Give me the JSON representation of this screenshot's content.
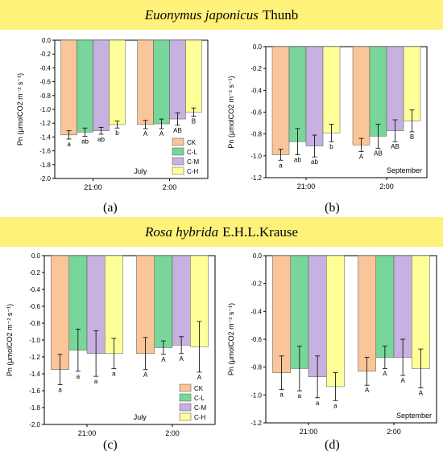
{
  "banners": [
    {
      "italic": "Euonymus japonicus",
      "plain": "Thunb"
    },
    {
      "italic": "Rosa hybrida",
      "plain": "E.H.L.Krause"
    }
  ],
  "colors": {
    "CK": "#f9c599",
    "C-L": "#78d69a",
    "C-M": "#c7b1e0",
    "C-H": "#ffff99",
    "banner": "#fff27a"
  },
  "chart_data": [
    {
      "id": "a",
      "type": "bar",
      "panel_label": "(a)",
      "month": "July",
      "ylabel": "Pn (μmolCO2 m⁻² s⁻¹)",
      "ylim": [
        -2.0,
        0.0
      ],
      "yticks": [
        0.0,
        -0.2,
        -0.4,
        -0.6,
        -0.8,
        -1.0,
        -1.2,
        -1.4,
        -1.6,
        -1.8,
        -2.0
      ],
      "categories": [
        "21:00",
        "2:00"
      ],
      "legend": {
        "show": true,
        "position": "lower-right"
      },
      "series": [
        {
          "name": "CK",
          "values": [
            -1.37,
            -1.22
          ],
          "errors": [
            0.06,
            0.06
          ],
          "letters": [
            "a",
            "A"
          ]
        },
        {
          "name": "C-L",
          "values": [
            -1.33,
            -1.21
          ],
          "errors": [
            0.06,
            0.07
          ],
          "letters": [
            "ab",
            "A"
          ]
        },
        {
          "name": "C-M",
          "values": [
            -1.31,
            -1.14
          ],
          "errors": [
            0.05,
            0.09
          ],
          "letters": [
            "ab",
            "AB"
          ]
        },
        {
          "name": "C-H",
          "values": [
            -1.22,
            -1.04
          ],
          "errors": [
            0.05,
            0.06
          ],
          "letters": [
            "b",
            "B"
          ]
        }
      ]
    },
    {
      "id": "b",
      "type": "bar",
      "panel_label": "(b)",
      "month": "September",
      "ylabel": "Pn (μmolCO2 m⁻² s⁻¹)",
      "ylim": [
        -1.2,
        0.0
      ],
      "yticks": [
        0.0,
        -0.2,
        -0.4,
        -0.6,
        -0.8,
        -1.0,
        -1.2
      ],
      "categories": [
        "21:00",
        "2:00"
      ],
      "legend": {
        "show": false
      },
      "series": [
        {
          "name": "CK",
          "values": [
            -0.99,
            -0.9
          ],
          "errors": [
            0.05,
            0.06
          ],
          "letters": [
            "a",
            "A"
          ]
        },
        {
          "name": "C-L",
          "values": [
            -0.87,
            -0.82
          ],
          "errors": [
            0.12,
            0.11
          ],
          "letters": [
            "ab",
            "AB"
          ]
        },
        {
          "name": "C-M",
          "values": [
            -0.91,
            -0.77
          ],
          "errors": [
            0.1,
            0.1
          ],
          "letters": [
            "ab",
            "AB"
          ]
        },
        {
          "name": "C-H",
          "values": [
            -0.79,
            -0.68
          ],
          "errors": [
            0.08,
            0.1
          ],
          "letters": [
            "b",
            "B"
          ]
        }
      ]
    },
    {
      "id": "c",
      "type": "bar",
      "panel_label": "(c)",
      "month": "July",
      "ylabel": "Pn (μmolCO2 m⁻² s⁻¹)",
      "ylim": [
        -2.0,
        0.0
      ],
      "yticks": [
        0.0,
        -0.2,
        -0.4,
        -0.6,
        -0.8,
        -1.0,
        -1.2,
        -1.4,
        -1.6,
        -1.8,
        -2.0
      ],
      "categories": [
        "21:00",
        "2:00"
      ],
      "legend": {
        "show": true,
        "position": "lower-right"
      },
      "series": [
        {
          "name": "CK",
          "values": [
            -1.35,
            -1.16
          ],
          "errors": [
            0.18,
            0.19
          ],
          "letters": [
            "a",
            "A"
          ]
        },
        {
          "name": "C-L",
          "values": [
            -1.12,
            -1.09
          ],
          "errors": [
            0.25,
            0.08
          ],
          "letters": [
            "a",
            "A"
          ]
        },
        {
          "name": "C-M",
          "values": [
            -1.16,
            -1.06
          ],
          "errors": [
            0.27,
            0.1
          ],
          "letters": [
            "a",
            "A"
          ]
        },
        {
          "name": "C-H",
          "values": [
            -1.16,
            -1.08
          ],
          "errors": [
            0.18,
            0.3
          ],
          "letters": [
            "a",
            "A"
          ]
        }
      ]
    },
    {
      "id": "d",
      "type": "bar",
      "panel_label": "(d)",
      "month": "September",
      "ylabel": "Pn (μmolCO2 m⁻² s⁻¹)",
      "ylim": [
        -1.2,
        0.0
      ],
      "yticks": [
        0.0,
        -0.2,
        -0.4,
        -0.6,
        -0.8,
        -1.0,
        -1.2
      ],
      "categories": [
        "21:00",
        "2:00"
      ],
      "legend": {
        "show": false
      },
      "series": [
        {
          "name": "CK",
          "values": [
            -0.84,
            -0.83
          ],
          "errors": [
            0.12,
            0.1
          ],
          "letters": [
            "a",
            "A"
          ]
        },
        {
          "name": "C-L",
          "values": [
            -0.81,
            -0.73
          ],
          "errors": [
            0.16,
            0.08
          ],
          "letters": [
            "a",
            "A"
          ]
        },
        {
          "name": "C-M",
          "values": [
            -0.87,
            -0.73
          ],
          "errors": [
            0.15,
            0.13
          ],
          "letters": [
            "a",
            "A"
          ]
        },
        {
          "name": "C-H",
          "values": [
            -0.94,
            -0.81
          ],
          "errors": [
            0.1,
            0.14
          ],
          "letters": [
            "a",
            "A"
          ]
        }
      ]
    }
  ]
}
